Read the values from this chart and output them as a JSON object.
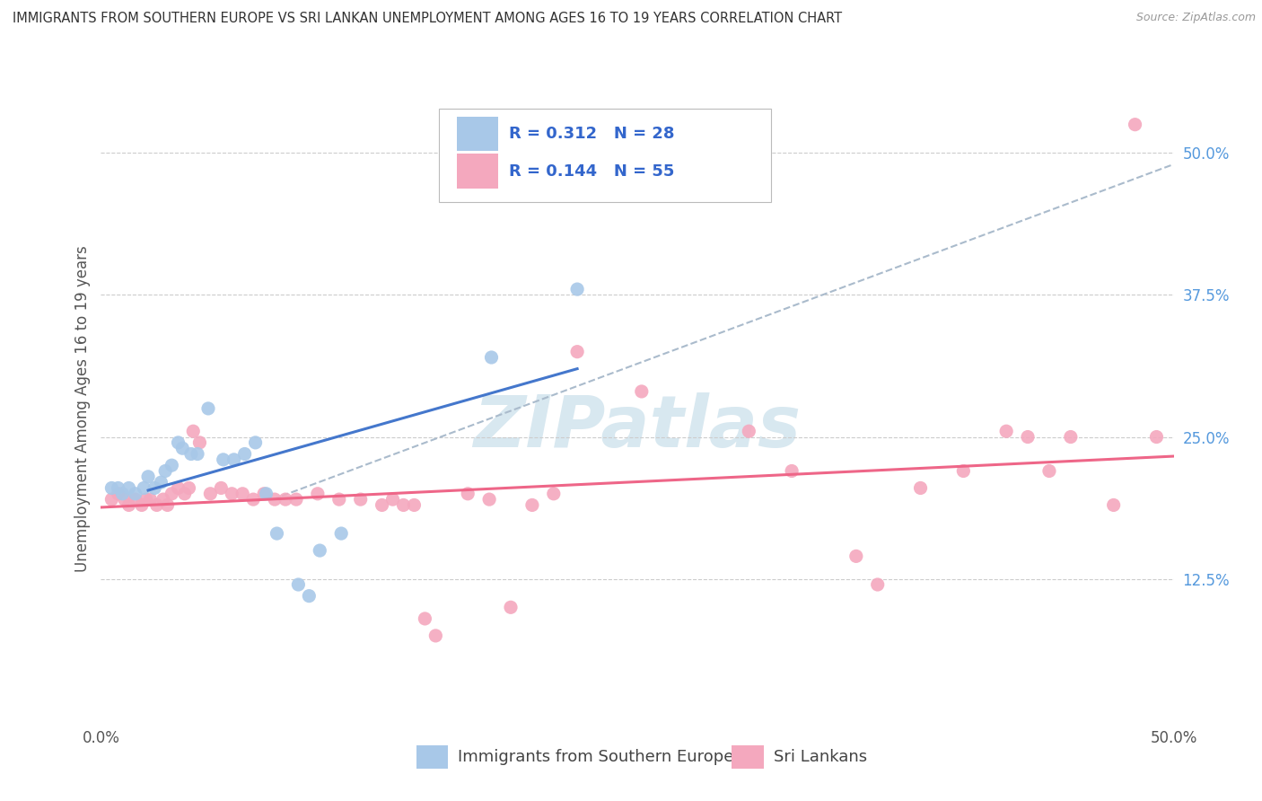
{
  "title": "IMMIGRANTS FROM SOUTHERN EUROPE VS SRI LANKAN UNEMPLOYMENT AMONG AGES 16 TO 19 YEARS CORRELATION CHART",
  "source": "Source: ZipAtlas.com",
  "ylabel": "Unemployment Among Ages 16 to 19 years",
  "xlim": [
    0.0,
    0.5
  ],
  "ylim": [
    0.0,
    0.55
  ],
  "xtick_positions": [
    0.0,
    0.1,
    0.2,
    0.3,
    0.4,
    0.5
  ],
  "xticklabels": [
    "0.0%",
    "",
    "",
    "",
    "",
    "50.0%"
  ],
  "ytick_labels_right": [
    "50.0%",
    "37.5%",
    "25.0%",
    "12.5%"
  ],
  "ytick_vals_right": [
    0.5,
    0.375,
    0.25,
    0.125
  ],
  "legend_r1": "R = 0.312",
  "legend_n1": "N = 28",
  "legend_r2": "R = 0.144",
  "legend_n2": "N = 55",
  "legend_label1": "Immigrants from Southern Europe",
  "legend_label2": "Sri Lankans",
  "color_blue": "#A8C8E8",
  "color_pink": "#F4A8BE",
  "line_blue": "#4477CC",
  "line_pink": "#EE6688",
  "line_dash": "#AABBCC",
  "background": "#FFFFFF",
  "watermark": "ZIPatlas",
  "blue_points": [
    [
      0.005,
      0.205
    ],
    [
      0.008,
      0.205
    ],
    [
      0.01,
      0.2
    ],
    [
      0.013,
      0.205
    ],
    [
      0.016,
      0.2
    ],
    [
      0.02,
      0.205
    ],
    [
      0.022,
      0.215
    ],
    [
      0.025,
      0.205
    ],
    [
      0.028,
      0.21
    ],
    [
      0.03,
      0.22
    ],
    [
      0.033,
      0.225
    ],
    [
      0.036,
      0.245
    ],
    [
      0.038,
      0.24
    ],
    [
      0.042,
      0.235
    ],
    [
      0.045,
      0.235
    ],
    [
      0.05,
      0.275
    ],
    [
      0.057,
      0.23
    ],
    [
      0.062,
      0.23
    ],
    [
      0.067,
      0.235
    ],
    [
      0.072,
      0.245
    ],
    [
      0.077,
      0.2
    ],
    [
      0.082,
      0.165
    ],
    [
      0.092,
      0.12
    ],
    [
      0.097,
      0.11
    ],
    [
      0.102,
      0.15
    ],
    [
      0.112,
      0.165
    ],
    [
      0.182,
      0.32
    ],
    [
      0.222,
      0.38
    ]
  ],
  "pink_points": [
    [
      0.005,
      0.195
    ],
    [
      0.008,
      0.2
    ],
    [
      0.011,
      0.195
    ],
    [
      0.013,
      0.19
    ],
    [
      0.016,
      0.195
    ],
    [
      0.019,
      0.19
    ],
    [
      0.021,
      0.195
    ],
    [
      0.023,
      0.195
    ],
    [
      0.026,
      0.19
    ],
    [
      0.029,
      0.195
    ],
    [
      0.031,
      0.19
    ],
    [
      0.033,
      0.2
    ],
    [
      0.036,
      0.205
    ],
    [
      0.039,
      0.2
    ],
    [
      0.041,
      0.205
    ],
    [
      0.043,
      0.255
    ],
    [
      0.046,
      0.245
    ],
    [
      0.051,
      0.2
    ],
    [
      0.056,
      0.205
    ],
    [
      0.061,
      0.2
    ],
    [
      0.066,
      0.2
    ],
    [
      0.071,
      0.195
    ],
    [
      0.076,
      0.2
    ],
    [
      0.081,
      0.195
    ],
    [
      0.086,
      0.195
    ],
    [
      0.091,
      0.195
    ],
    [
      0.101,
      0.2
    ],
    [
      0.111,
      0.195
    ],
    [
      0.121,
      0.195
    ],
    [
      0.131,
      0.19
    ],
    [
      0.136,
      0.195
    ],
    [
      0.141,
      0.19
    ],
    [
      0.146,
      0.19
    ],
    [
      0.151,
      0.09
    ],
    [
      0.156,
      0.075
    ],
    [
      0.171,
      0.2
    ],
    [
      0.181,
      0.195
    ],
    [
      0.191,
      0.1
    ],
    [
      0.201,
      0.19
    ],
    [
      0.211,
      0.2
    ],
    [
      0.222,
      0.325
    ],
    [
      0.252,
      0.29
    ],
    [
      0.302,
      0.255
    ],
    [
      0.322,
      0.22
    ],
    [
      0.352,
      0.145
    ],
    [
      0.362,
      0.12
    ],
    [
      0.382,
      0.205
    ],
    [
      0.402,
      0.22
    ],
    [
      0.422,
      0.255
    ],
    [
      0.432,
      0.25
    ],
    [
      0.442,
      0.22
    ],
    [
      0.452,
      0.25
    ],
    [
      0.472,
      0.19
    ],
    [
      0.482,
      0.525
    ],
    [
      0.492,
      0.25
    ]
  ],
  "blue_line_x": [
    0.022,
    0.222
  ],
  "blue_line_y": [
    0.203,
    0.31
  ],
  "pink_line_x": [
    0.0,
    0.5
  ],
  "pink_line_y": [
    0.188,
    0.233
  ],
  "dash_line_x": [
    0.08,
    0.5
  ],
  "dash_line_y": [
    0.195,
    0.49
  ]
}
